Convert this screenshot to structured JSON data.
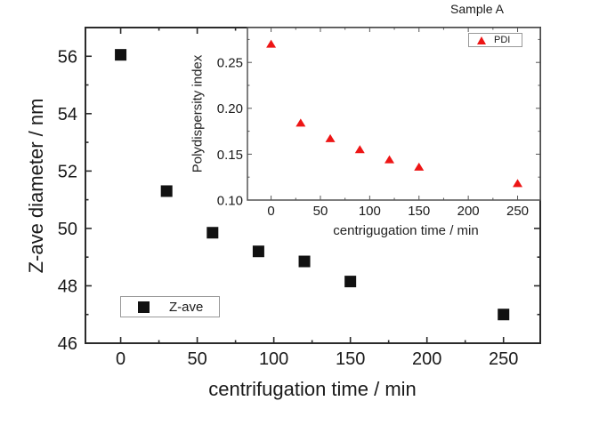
{
  "title_annotation": "Sample A",
  "colors": {
    "background": "#ffffff",
    "main_axis": "#2b2b2b",
    "inset_axis": "#555555",
    "text": "#1a1a1a",
    "main_marker": "#111111",
    "inset_marker": "#ed1515",
    "legend_border": "#999999"
  },
  "chart_data": [
    {
      "id": "main",
      "type": "scatter",
      "marker": "square",
      "marker_color": "#111111",
      "xlabel": "centrifugation time / min",
      "ylabel": "Z-ave diameter / nm",
      "legend": "Z-ave",
      "legend_position": "inside-lower-left",
      "x": [
        0,
        30,
        60,
        90,
        120,
        150,
        250
      ],
      "y": [
        56.05,
        51.3,
        49.85,
        49.2,
        48.85,
        48.15,
        47.0
      ],
      "xlim": [
        -23,
        274
      ],
      "ylim": [
        46,
        57
      ],
      "grid": false,
      "x_ticks": {
        "major": [
          0,
          50,
          100,
          150,
          200,
          250
        ],
        "minor": [
          25,
          75,
          125,
          175,
          225
        ],
        "labels": [
          "0",
          "50",
          "100",
          "150",
          "200",
          "250"
        ]
      },
      "y_ticks": {
        "major": [
          46,
          48,
          50,
          52,
          54,
          56
        ],
        "minor": [
          47,
          49,
          51,
          53,
          55
        ],
        "labels": [
          "46",
          "48",
          "50",
          "52",
          "54",
          "56"
        ]
      }
    },
    {
      "id": "inset",
      "type": "scatter",
      "marker": "triangle",
      "marker_color": "#ed1515",
      "xlabel": "centrigugation time / min",
      "ylabel": "Polydispersity index",
      "legend": "PDI",
      "legend_position": "inside-upper-right",
      "x": [
        0,
        30,
        60,
        90,
        120,
        150,
        250
      ],
      "y": [
        0.27,
        0.184,
        0.167,
        0.155,
        0.144,
        0.136,
        0.118
      ],
      "xlim": [
        -24,
        273
      ],
      "ylim": [
        0.1,
        0.288
      ],
      "grid": false,
      "x_ticks": {
        "major": [
          0,
          50,
          100,
          150,
          200,
          250
        ],
        "minor": [
          25,
          75,
          125,
          175,
          225
        ],
        "labels": [
          "0",
          "50",
          "100",
          "150",
          "200",
          "250"
        ]
      },
      "y_ticks": {
        "major": [
          0.1,
          0.15,
          0.2,
          0.25
        ],
        "minor": [
          0.125,
          0.175,
          0.225,
          0.275
        ],
        "labels": [
          "0.10",
          "0.15",
          "0.20",
          "0.25"
        ]
      }
    }
  ]
}
